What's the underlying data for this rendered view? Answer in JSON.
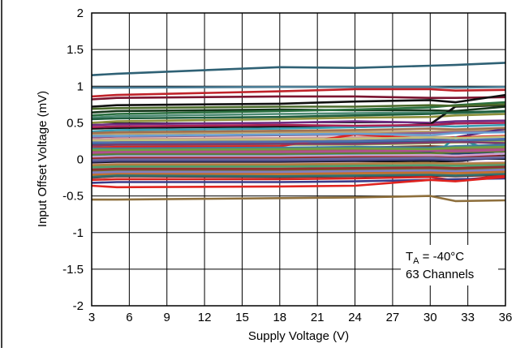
{
  "chart_data": {
    "type": "line",
    "xlabel": "Supply Voltage (V)",
    "ylabel": "Input Offset Voltage (mV)",
    "xlim": [
      3,
      36
    ],
    "ylim": [
      -2,
      2
    ],
    "x_ticks": [
      "3",
      "6",
      "9",
      "12",
      "15",
      "18",
      "21",
      "24",
      "27",
      "30",
      "33",
      "36"
    ],
    "y_ticks": [
      "2",
      "1.5",
      "1",
      "0.5",
      "0",
      "-0.5",
      "-1",
      "-1.5",
      "-2"
    ],
    "grid": true,
    "legend_position": "none",
    "annotation": {
      "temp_symbol": "T",
      "temp_subscript": "A",
      "temp_value": " = -40°C",
      "channels": "63 Channels"
    },
    "x": [
      3,
      5,
      18,
      24,
      30,
      32,
      36
    ],
    "series": [
      {
        "color": "#2f6175",
        "values": [
          1.15,
          1.17,
          1.26,
          1.25,
          1.28,
          1.29,
          1.32
        ]
      },
      {
        "color": "#4b7d96",
        "values": [
          0.98,
          0.98,
          0.99,
          0.99,
          0.99,
          0.98,
          0.99
        ]
      },
      {
        "color": "#c0232a",
        "values": [
          0.86,
          0.88,
          0.93,
          0.96,
          0.96,
          0.94,
          0.95
        ]
      },
      {
        "color": "#7b1530",
        "values": [
          0.82,
          0.84,
          0.86,
          0.86,
          0.84,
          0.84,
          0.85
        ]
      },
      {
        "color": "#111111",
        "values": [
          0.72,
          0.74,
          0.76,
          0.79,
          0.81,
          0.78,
          0.88
        ]
      },
      {
        "color": "#15361a",
        "values": [
          0.64,
          0.66,
          0.68,
          0.67,
          0.67,
          0.66,
          0.72
        ]
      },
      {
        "color": "#2a6f3f",
        "values": [
          0.6,
          0.62,
          0.66,
          0.68,
          0.71,
          0.74,
          0.78
        ]
      },
      {
        "color": "#4d8a74",
        "values": [
          0.57,
          0.59,
          0.62,
          0.63,
          0.64,
          0.63,
          0.65
        ]
      },
      {
        "color": "#8d8f3a",
        "values": [
          0.5,
          0.52,
          0.55,
          0.57,
          0.58,
          0.6,
          0.62
        ]
      },
      {
        "color": "#6e2c82",
        "values": [
          0.47,
          0.48,
          0.5,
          0.52,
          0.5,
          0.52,
          0.53
        ]
      },
      {
        "color": "#111111",
        "values": [
          0.42,
          0.43,
          0.45,
          0.44,
          0.48,
          0.72,
          0.74
        ]
      },
      {
        "color": "#3a9fb5",
        "values": [
          0.38,
          0.4,
          0.42,
          0.44,
          0.46,
          0.45,
          0.47
        ]
      },
      {
        "color": "#bda36c",
        "values": [
          0.34,
          0.35,
          0.37,
          0.37,
          0.38,
          0.39,
          0.4
        ]
      },
      {
        "color": "#8c5b8f",
        "values": [
          0.3,
          0.31,
          0.33,
          0.34,
          0.36,
          0.37,
          0.38
        ]
      },
      {
        "color": "#d09a95",
        "values": [
          0.27,
          0.28,
          0.29,
          0.3,
          0.31,
          0.3,
          0.32
        ]
      },
      {
        "color": "#5a2b7a",
        "values": [
          0.24,
          0.25,
          0.26,
          0.27,
          0.28,
          0.3,
          0.42
        ]
      },
      {
        "color": "#2e5f8a",
        "values": [
          0.21,
          0.22,
          0.22,
          0.23,
          0.24,
          0.25,
          0.26
        ]
      },
      {
        "color": "#a8b35a",
        "values": [
          0.18,
          0.19,
          0.2,
          0.2,
          0.22,
          0.23,
          0.24
        ]
      },
      {
        "color": "#e0231f",
        "values": [
          0.16,
          0.17,
          0.18,
          0.34,
          0.28,
          0.3,
          0.32
        ]
      },
      {
        "color": "#7a3b1c",
        "values": [
          0.14,
          0.14,
          0.15,
          0.16,
          0.18,
          0.17,
          0.19
        ]
      },
      {
        "color": "#3d7a3d",
        "values": [
          0.12,
          0.12,
          0.13,
          0.14,
          0.15,
          0.14,
          0.15
        ]
      },
      {
        "color": "#9b3fa0",
        "values": [
          0.1,
          0.11,
          0.11,
          0.12,
          0.13,
          0.12,
          0.14
        ]
      },
      {
        "color": "#c98a3c",
        "values": [
          0.08,
          0.09,
          0.09,
          0.1,
          0.1,
          0.11,
          0.12
        ]
      },
      {
        "color": "#1d3e6e",
        "values": [
          0.06,
          0.07,
          0.07,
          0.08,
          0.09,
          0.08,
          0.1
        ]
      },
      {
        "color": "#56a0a0",
        "values": [
          0.04,
          0.05,
          0.05,
          0.06,
          0.07,
          0.05,
          0.07
        ]
      },
      {
        "color": "#8a1f2a",
        "values": [
          0.02,
          0.03,
          0.03,
          0.04,
          0.05,
          0.04,
          0.06
        ]
      },
      {
        "color": "#bcbcbc",
        "values": [
          0.0,
          0.01,
          0.01,
          0.02,
          0.02,
          0.01,
          0.03
        ]
      },
      {
        "color": "#2b9a9a",
        "values": [
          -0.02,
          -0.01,
          -0.01,
          0.0,
          0.01,
          0.3,
          0.05
        ]
      },
      {
        "color": "#111111",
        "values": [
          -0.05,
          -0.04,
          -0.04,
          -0.03,
          -0.02,
          -0.03,
          0.05
        ]
      },
      {
        "color": "#d7b0c0",
        "values": [
          -0.07,
          -0.06,
          -0.06,
          -0.05,
          -0.06,
          -0.05,
          -0.04
        ]
      },
      {
        "color": "#4a8c4a",
        "values": [
          -0.1,
          -0.09,
          -0.09,
          -0.08,
          -0.09,
          -0.08,
          -0.07
        ]
      },
      {
        "color": "#e98a85",
        "values": [
          -0.13,
          -0.12,
          -0.12,
          -0.11,
          -0.1,
          -0.12,
          -0.11
        ]
      },
      {
        "color": "#6d6d2a",
        "values": [
          -0.16,
          -0.15,
          -0.15,
          -0.14,
          -0.13,
          -0.14,
          -0.12
        ]
      },
      {
        "color": "#9a7ab8",
        "values": [
          -0.19,
          -0.18,
          -0.18,
          -0.17,
          -0.16,
          -0.17,
          -0.15
        ]
      },
      {
        "color": "#c8a050",
        "values": [
          -0.22,
          -0.21,
          -0.21,
          -0.2,
          -0.19,
          -0.2,
          -0.18
        ]
      },
      {
        "color": "#5e2e2e",
        "values": [
          -0.25,
          -0.23,
          -0.24,
          -0.23,
          -0.22,
          -0.23,
          -0.21
        ]
      },
      {
        "color": "#d6231f",
        "values": [
          -0.28,
          -0.27,
          -0.27,
          -0.26,
          -0.24,
          -0.29,
          -0.22
        ]
      },
      {
        "color": "#3b3b8a",
        "values": [
          -0.32,
          -0.31,
          -0.31,
          -0.3,
          -0.28,
          -0.27,
          -0.26
        ]
      },
      {
        "color": "#e0231f",
        "values": [
          -0.36,
          -0.38,
          -0.37,
          -0.36,
          -0.28,
          -0.3,
          -0.24
        ]
      },
      {
        "color": "#8e6f3c",
        "values": [
          -0.55,
          -0.55,
          -0.53,
          -0.52,
          -0.5,
          -0.57,
          -0.56
        ]
      },
      {
        "color": "#1f5f3f",
        "values": [
          0.55,
          0.56,
          0.58,
          0.6,
          0.62,
          0.64,
          0.66
        ]
      },
      {
        "color": "#aa2255",
        "values": [
          0.44,
          0.45,
          0.47,
          0.46,
          0.47,
          0.49,
          0.5
        ]
      },
      {
        "color": "#6a9fd0",
        "values": [
          0.32,
          0.32,
          0.34,
          0.35,
          0.33,
          0.36,
          0.37
        ]
      },
      {
        "color": "#c0c07a",
        "values": [
          0.25,
          0.26,
          0.27,
          0.28,
          0.3,
          0.29,
          0.31
        ]
      },
      {
        "color": "#7d3b6b",
        "values": [
          0.19,
          0.2,
          0.21,
          0.21,
          0.23,
          0.24,
          0.22
        ]
      },
      {
        "color": "#3f7f9f",
        "values": [
          0.15,
          0.15,
          0.16,
          0.17,
          0.16,
          0.18,
          0.2
        ]
      },
      {
        "color": "#a06060",
        "values": [
          0.11,
          0.12,
          0.12,
          0.13,
          0.14,
          0.13,
          0.16
        ]
      },
      {
        "color": "#607f30",
        "values": [
          0.07,
          0.08,
          0.08,
          0.09,
          0.08,
          0.1,
          0.11
        ]
      },
      {
        "color": "#d0a0d0",
        "values": [
          0.03,
          0.04,
          0.04,
          0.05,
          0.06,
          0.05,
          0.08
        ]
      },
      {
        "color": "#404080",
        "values": [
          -0.03,
          -0.02,
          -0.02,
          -0.01,
          0.0,
          -0.01,
          0.02
        ]
      },
      {
        "color": "#b08040",
        "values": [
          -0.08,
          -0.07,
          -0.07,
          -0.06,
          -0.05,
          -0.06,
          -0.05
        ]
      },
      {
        "color": "#50a070",
        "values": [
          -0.11,
          -0.1,
          -0.1,
          -0.09,
          -0.08,
          -0.09,
          -0.08
        ]
      },
      {
        "color": "#903030",
        "values": [
          -0.14,
          -0.13,
          -0.13,
          -0.12,
          -0.11,
          -0.12,
          -0.1
        ]
      },
      {
        "color": "#8080c0",
        "values": [
          -0.18,
          -0.17,
          -0.17,
          -0.16,
          -0.15,
          -0.16,
          -0.14
        ]
      },
      {
        "color": "#c07030",
        "values": [
          -0.21,
          -0.2,
          -0.2,
          -0.19,
          -0.18,
          -0.19,
          -0.17
        ]
      },
      {
        "color": "#307070",
        "values": [
          -0.24,
          -0.22,
          -0.23,
          -0.22,
          -0.21,
          -0.22,
          -0.2
        ]
      },
      {
        "color": "#b05090",
        "values": [
          0.09,
          0.1,
          0.1,
          0.11,
          0.12,
          0.11,
          0.13
        ]
      },
      {
        "color": "#70a040",
        "values": [
          0.13,
          0.13,
          0.14,
          0.15,
          0.14,
          0.16,
          0.17
        ]
      },
      {
        "color": "#5070b0",
        "values": [
          0.23,
          0.23,
          0.24,
          0.25,
          0.27,
          0.26,
          0.28
        ]
      },
      {
        "color": "#a07050",
        "values": [
          0.36,
          0.37,
          0.39,
          0.4,
          0.42,
          0.41,
          0.43
        ]
      },
      {
        "color": "#4a6a2a",
        "values": [
          0.69,
          0.7,
          0.72,
          0.72,
          0.74,
          0.73,
          0.75
        ]
      },
      {
        "color": "#9a2a2a",
        "values": [
          0.01,
          0.02,
          0.02,
          0.03,
          0.03,
          0.02,
          0.04
        ]
      },
      {
        "color": "#6a6aa0",
        "values": [
          -0.01,
          0.0,
          0.0,
          0.01,
          0.02,
          0.01,
          0.03
        ]
      }
    ]
  }
}
